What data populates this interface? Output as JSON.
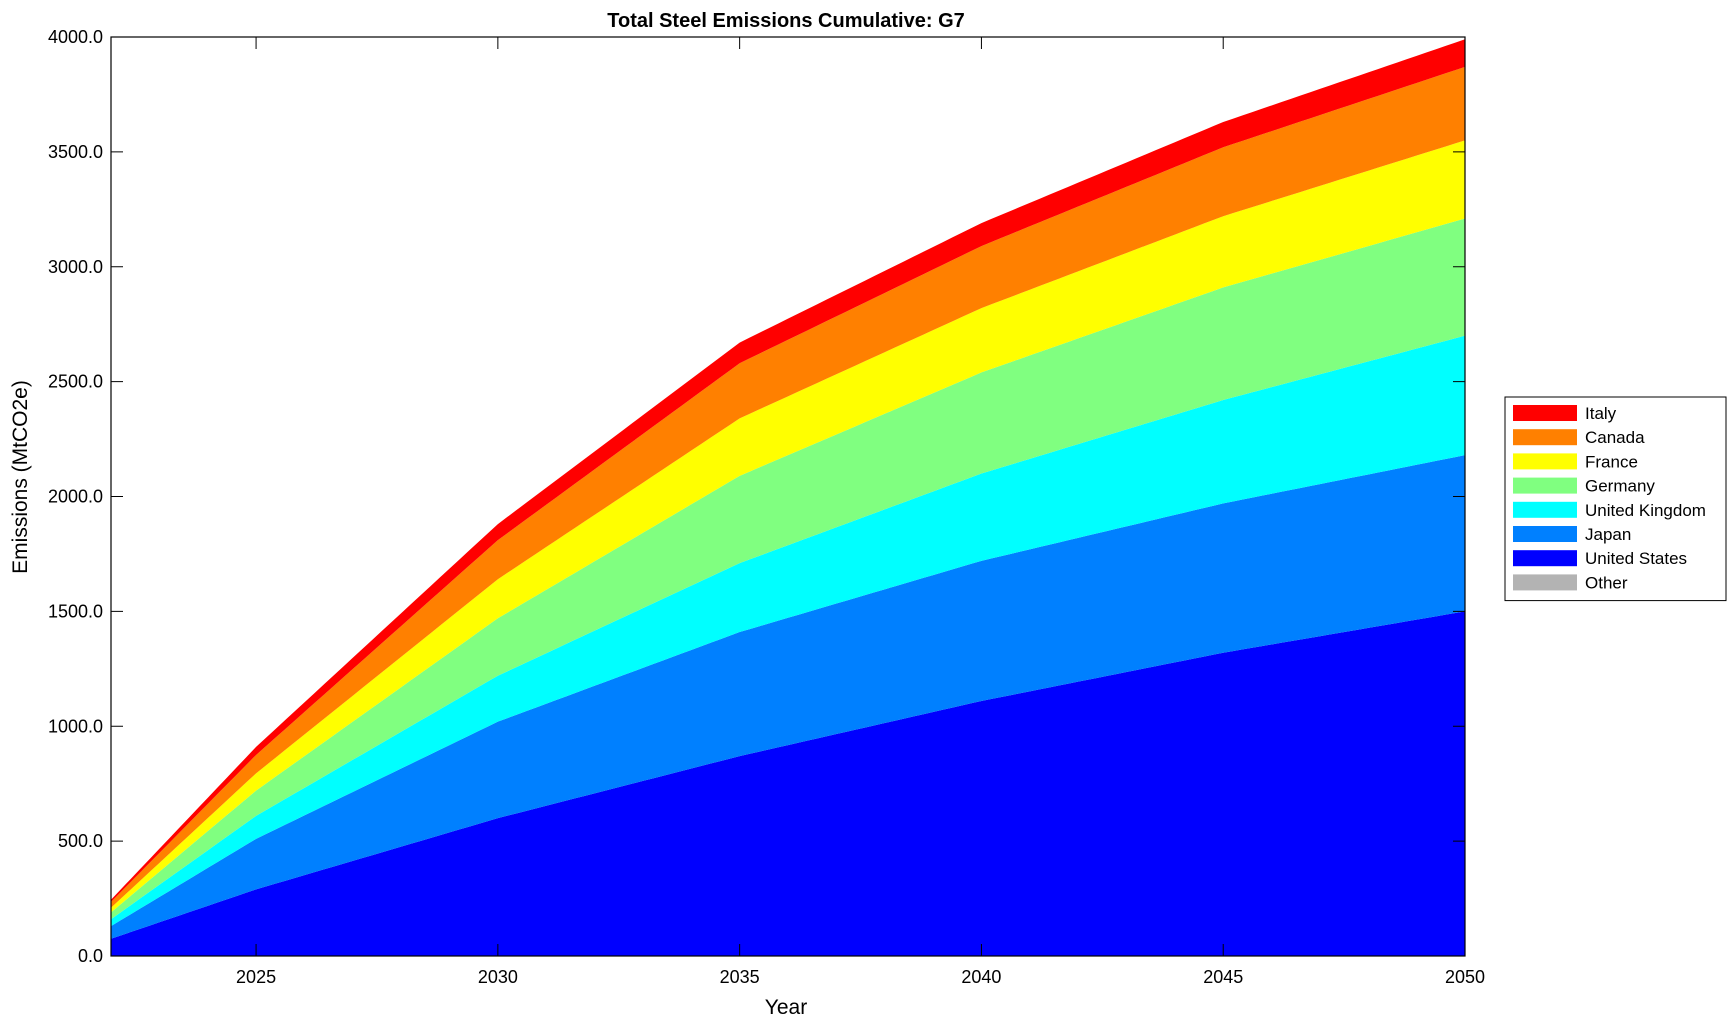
{
  "chart_data": {
    "type": "area",
    "stacked": true,
    "title": "Total Steel Emissions Cumulative: G7",
    "xlabel": "Year",
    "ylabel": "Emissions (MtCO2e)",
    "xlim": [
      2022,
      2050
    ],
    "ylim": [
      0,
      4000
    ],
    "xticks": [
      "2025",
      "2030",
      "2035",
      "2040",
      "2045",
      "2050"
    ],
    "yticks": [
      "0.0",
      "500.0",
      "1000.0",
      "1500.0",
      "2000.0",
      "2500.0",
      "3000.0",
      "3500.0",
      "4000.0"
    ],
    "legend_position": "right",
    "x": [
      2022,
      2025,
      2030,
      2035,
      2040,
      2045,
      2050
    ],
    "series": [
      {
        "name": "United States",
        "color": "#0000ff",
        "values": [
          75,
          290,
          600,
          870,
          1110,
          1320,
          1500
        ]
      },
      {
        "name": "Japan",
        "color": "#0080ff",
        "values": [
          55,
          220,
          420,
          540,
          610,
          650,
          680
        ]
      },
      {
        "name": "United Kingdom",
        "color": "#00ffff",
        "values": [
          30,
          100,
          200,
          300,
          380,
          450,
          520
        ]
      },
      {
        "name": "Germany",
        "color": "#80ff80",
        "values": [
          30,
          110,
          250,
          380,
          440,
          490,
          510
        ]
      },
      {
        "name": "France",
        "color": "#ffff00",
        "values": [
          20,
          75,
          170,
          250,
          280,
          310,
          340
        ]
      },
      {
        "name": "Canada",
        "color": "#ff8000",
        "values": [
          25,
          80,
          170,
          240,
          270,
          300,
          320
        ]
      },
      {
        "name": "Italy",
        "color": "#ff0000",
        "values": [
          10,
          35,
          70,
          90,
          100,
          110,
          120
        ]
      },
      {
        "name": "Other",
        "color": "#b3b3b3",
        "values": [
          0,
          0,
          0,
          0,
          0,
          0,
          0
        ]
      }
    ],
    "legend": [
      "Italy",
      "Canada",
      "France",
      "Germany",
      "United Kingdom",
      "Japan",
      "United States",
      "Other"
    ]
  }
}
